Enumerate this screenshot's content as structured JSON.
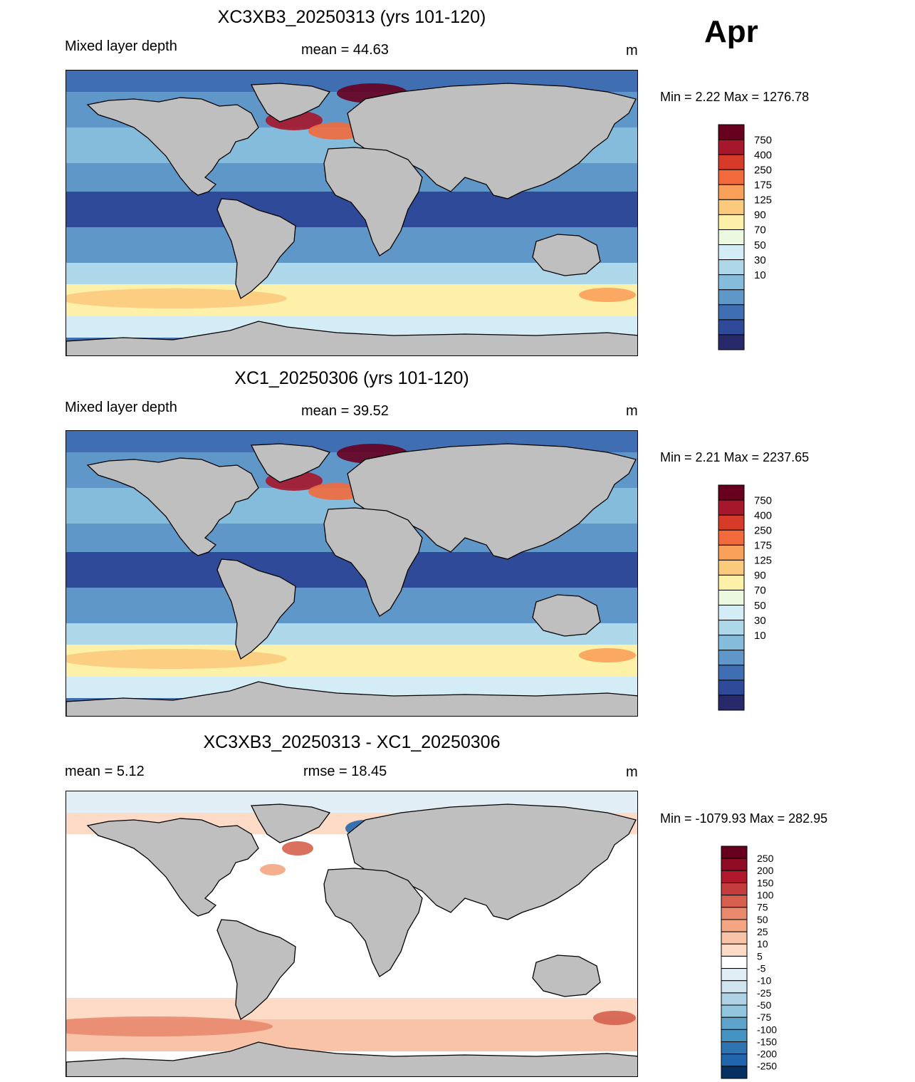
{
  "month": "Apr",
  "colors": {
    "land": "#bfbfbf",
    "ocean_deep_blue": "#3a5fa8",
    "coast": "#000000"
  },
  "panels": [
    {
      "title": "XC3XB3_20250313 (yrs 101-120)",
      "left_label": "Mixed layer depth",
      "center_label": "mean =  44.63",
      "units": "m",
      "minmax": "Min =    2.22 Max = 1276.78",
      "field": "mld",
      "levels": [
        "750",
        "400",
        "250",
        "175",
        "125",
        "90",
        "70",
        "50",
        "30",
        "10"
      ],
      "colors": [
        "#67001f",
        "#a6172b",
        "#d63b2a",
        "#f26a3c",
        "#f9a05a",
        "#fcca7c",
        "#fdf0a8",
        "#edf8e0",
        "#d3ecf5",
        "#aed8ea",
        "#86bcdb",
        "#5f97c8",
        "#3f6fb2",
        "#2f4a98",
        "#28296b"
      ]
    },
    {
      "title": "XC1_20250306 (yrs 101-120)",
      "left_label": "Mixed layer depth",
      "center_label": "mean =  39.52",
      "units": "m",
      "minmax": "Min =    2.21 Max = 2237.65",
      "field": "mld",
      "levels": [
        "750",
        "400",
        "250",
        "175",
        "125",
        "90",
        "70",
        "50",
        "30",
        "10"
      ],
      "colors": [
        "#67001f",
        "#a6172b",
        "#d63b2a",
        "#f26a3c",
        "#f9a05a",
        "#fcca7c",
        "#fdf0a8",
        "#edf8e0",
        "#d3ecf5",
        "#aed8ea",
        "#86bcdb",
        "#5f97c8",
        "#3f6fb2",
        "#2f4a98",
        "#28296b"
      ]
    },
    {
      "title": "XC3XB3_20250313 - XC1_20250306",
      "left_label": "mean =    5.12",
      "center_label": "rmse =  18.45",
      "units": "m",
      "minmax": "Min = -1079.93 Max = 282.95",
      "field": "diff",
      "levels": [
        "250",
        "200",
        "150",
        "100",
        "75",
        "50",
        "25",
        "10",
        "5",
        "-5",
        "-10",
        "-25",
        "-50",
        "-75",
        "-100",
        "-150",
        "-200",
        "-250"
      ],
      "colors": [
        "#67001f",
        "#8e0d25",
        "#b2182b",
        "#c43c3c",
        "#d6604d",
        "#e98a6f",
        "#f4a582",
        "#f8c3a6",
        "#fddbc7",
        "#ffffff",
        "#e1eef5",
        "#d1e5f0",
        "#afd2e6",
        "#92c5de",
        "#5ea3cc",
        "#4393c3",
        "#2f73b0",
        "#2166ac",
        "#053061"
      ]
    }
  ]
}
